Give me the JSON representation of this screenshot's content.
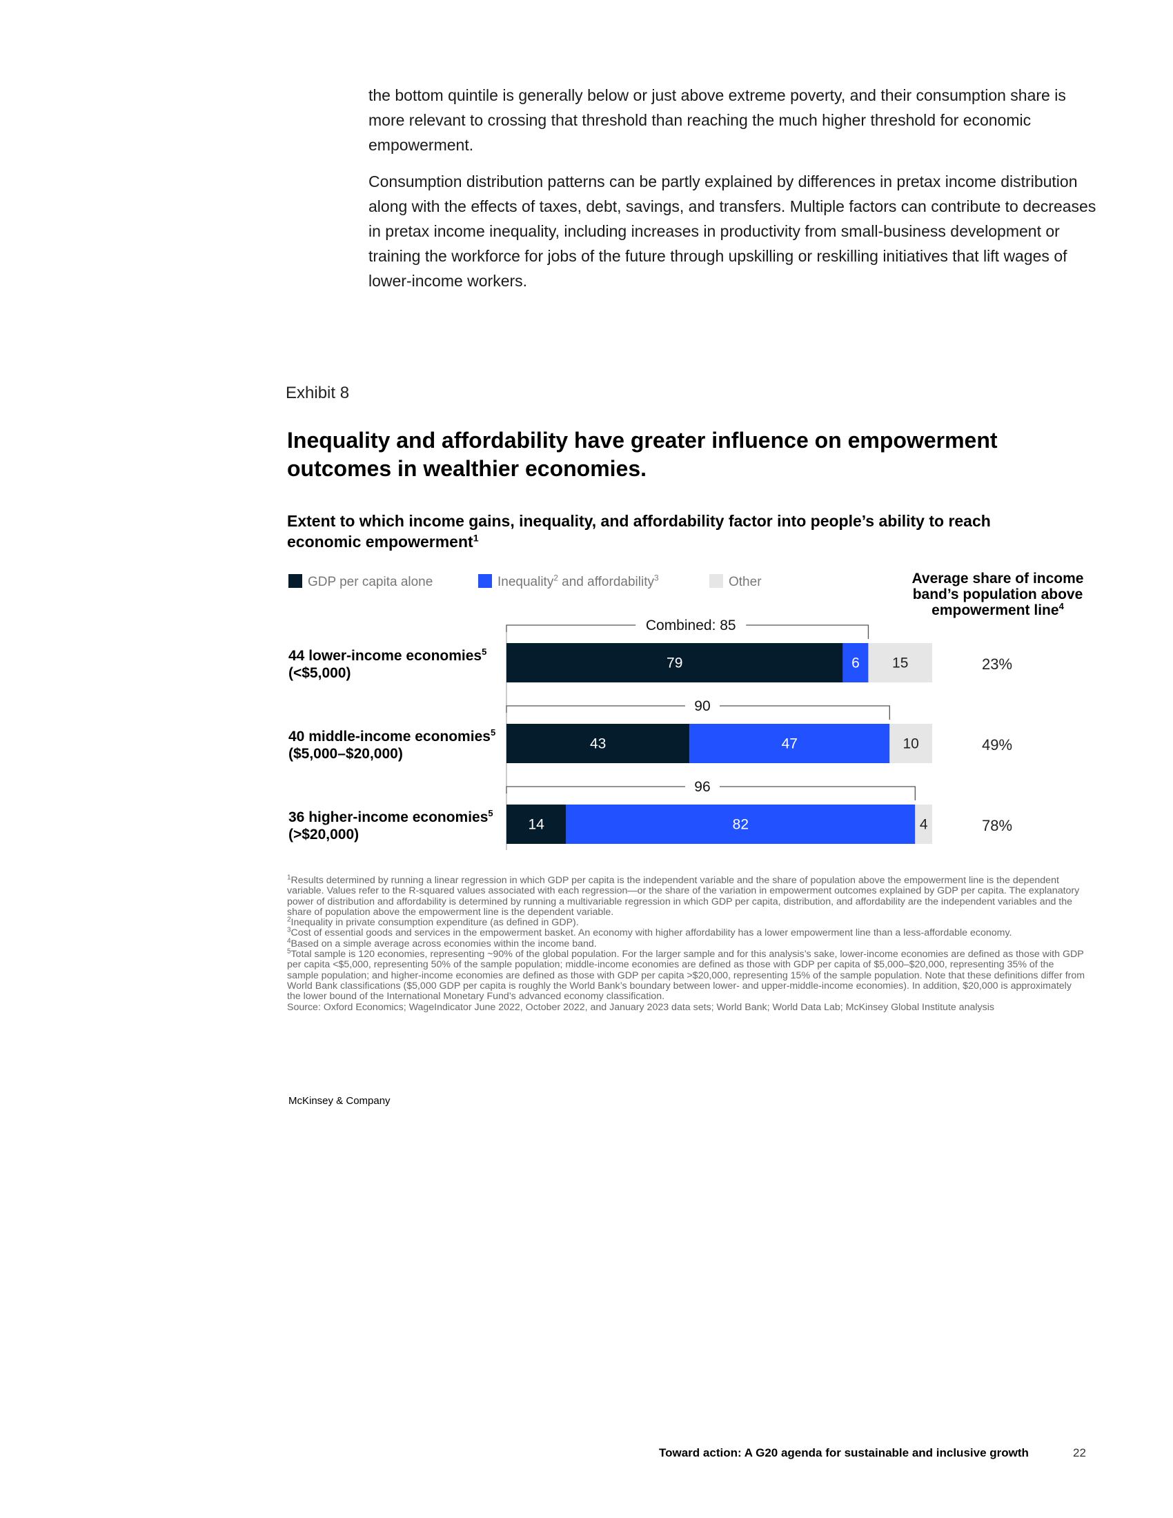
{
  "body": {
    "para1": "the bottom quintile is generally below or just above extreme poverty, and their consumption share is more relevant to crossing that threshold than reaching the much higher threshold for economic empowerment.",
    "para2": "Consumption distribution patterns can be partly explained by differences in pretax income distribution along with the effects of taxes, debt, savings, and transfers. Multiple factors can contribute to decreases in pretax income inequality, including increases in productivity from small-business development or training the workforce for jobs of the future through upskilling or reskilling initiatives that lift wages of lower-income workers."
  },
  "exhibit": {
    "label": "Exhibit 8",
    "title": "Inequality and affordability have greater influence on empowerment outcomes in wealthier economies.",
    "subtitle": "Extent to which income gains, inequality, and affordability factor into people’s ability to reach economic empowerment",
    "subtitle_sup": "1"
  },
  "legend": {
    "gdp_label": "GDP per capita alone",
    "ineq_label": "Inequality",
    "ineq_sup1": "2",
    "ineq_mid": " and affordability",
    "ineq_sup2": "3",
    "other_label": "Other"
  },
  "column_header": {
    "line1": "Average share of income",
    "line2": "band’s population above",
    "line3": "empowerment line",
    "sup": "4"
  },
  "colors": {
    "gdp": "#051c2c",
    "inequality": "#2251ff",
    "other": "#e6e6e6",
    "bracket": "#555555"
  },
  "chart_data": {
    "type": "bar",
    "orientation": "horizontal-stacked",
    "series_names": [
      "GDP per capita alone",
      "Inequality and affordability",
      "Other"
    ],
    "rows": [
      {
        "label_line1": "44 lower-income economies",
        "label_sup": "5",
        "label_line2": "(<$5,000)",
        "gdp": 79,
        "inequality": 6,
        "other": 15,
        "combined": 85,
        "combined_label": "Combined: 85",
        "share_above_line": "23%"
      },
      {
        "label_line1": "40 middle-income economies",
        "label_sup": "5",
        "label_line2": "($5,000–$20,000)",
        "gdp": 43,
        "inequality": 47,
        "other": 10,
        "combined": 90,
        "combined_label": "90",
        "share_above_line": "49%"
      },
      {
        "label_line1": "36 higher-income economies",
        "label_sup": "5",
        "label_line2": "(>$20,000)",
        "gdp": 14,
        "inequality": 82,
        "other": 4,
        "combined": 96,
        "combined_label": "96",
        "share_above_line": "78%"
      }
    ],
    "xlim": [
      0,
      100
    ]
  },
  "footnotes": {
    "n1_sup": "1",
    "n1": "Results determined by running a linear regression in which GDP per capita is the independent variable and the share of population above the empowerment line is the dependent variable. Values refer to the R-squared values associated with each regression—or the share of the variation in empowerment outcomes explained by GDP per capita. The explanatory power of distribution and affordability is determined by running a multivariable regression in which GDP per capita, distribution, and affordability are the independent variables and the share of population above the empowerment line is the dependent variable.",
    "n2_sup": "2",
    "n2": "Inequality in private consumption expenditure (as defined in GDP).",
    "n3_sup": "3",
    "n3": "Cost of essential goods and services in the empowerment basket. An economy with higher affordability has a lower empowerment line than a less-affordable economy.",
    "n4_sup": "4",
    "n4": "Based on a simple average across economies within the income band.",
    "n5_sup": "5",
    "n5": "Total sample is 120 economies, representing ~90% of the global population. For the larger sample and for this analysis’s sake, lower-income economies are defined as those with GDP per capita <$5,000, representing 50% of the sample population; middle-income economies are defined as those with GDP per capita of $5,000–$20,000, representing 35% of the sample population; and higher-income economies are defined as those with GDP per capita >$20,000, representing 15% of the sample population. Note that these definitions differ from World Bank classifications ($5,000 GDP per capita is roughly the World Bank’s boundary between lower- and upper-middle-income economies). In addition, $20,000 is approximately the lower bound of the International Monetary Fund’s advanced economy classification.",
    "source": "Source: Oxford Economics; WageIndicator June 2022, October 2022, and January 2023 data sets; World Bank; World Data Lab; McKinsey Global Institute analysis"
  },
  "footer": {
    "brand": "McKinsey & Company",
    "title": "Toward action: A G20 agenda for sustainable and inclusive growth",
    "page": "22"
  }
}
